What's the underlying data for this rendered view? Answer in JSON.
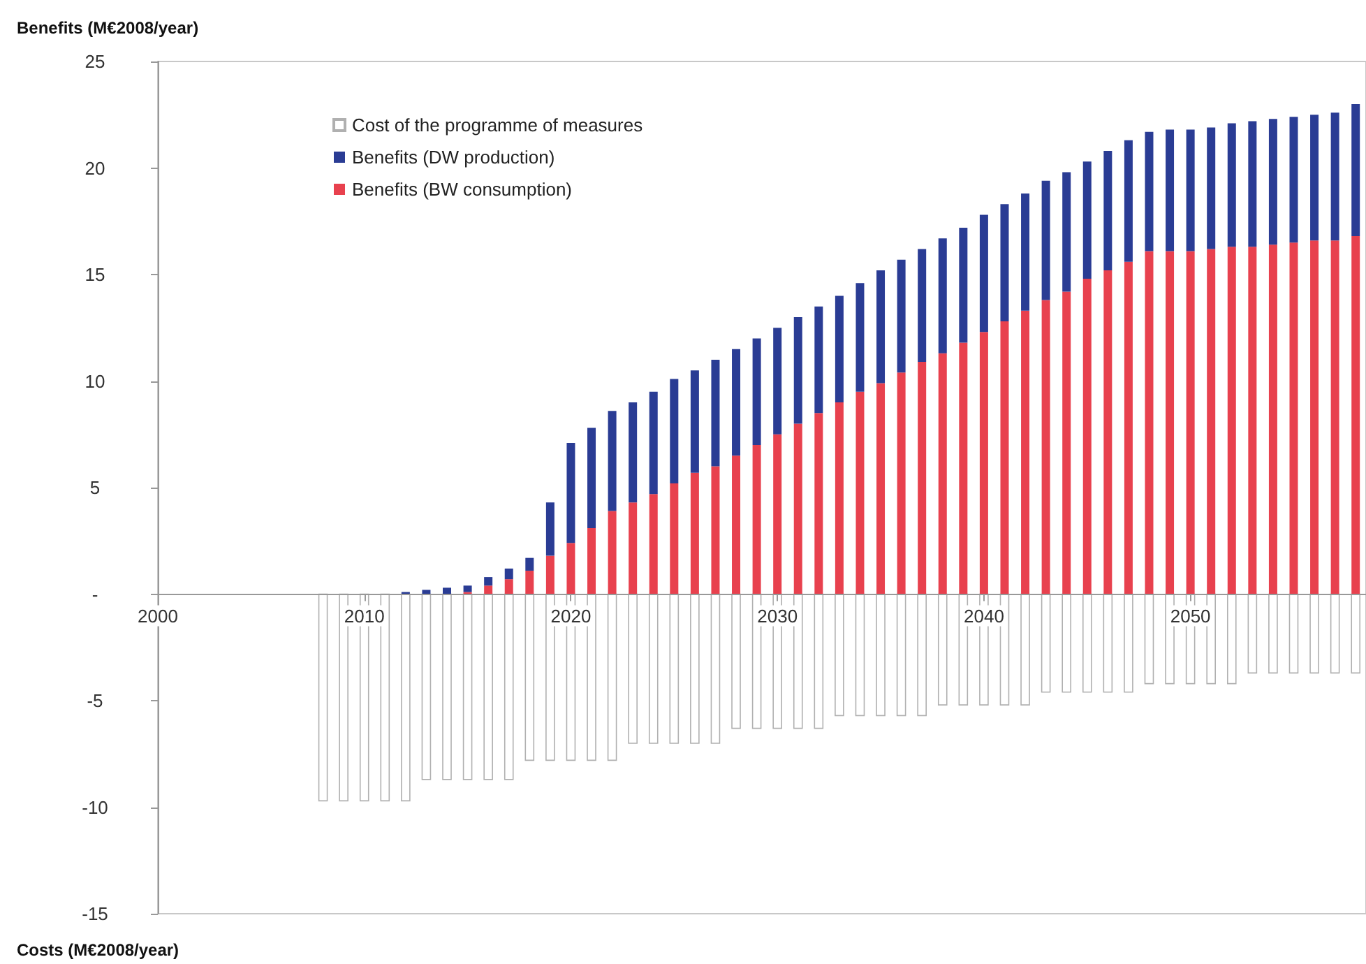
{
  "chart_data": {
    "type": "bar",
    "ylabel": "Benefits (M€2008/year)",
    "annotations": [
      "Costs (M€2008/year)"
    ],
    "x": [
      2008,
      2009,
      2010,
      2011,
      2012,
      2013,
      2014,
      2015,
      2016,
      2017,
      2018,
      2019,
      2020,
      2021,
      2022,
      2023,
      2024,
      2025,
      2026,
      2027,
      2028,
      2029,
      2030,
      2031,
      2032,
      2033,
      2034,
      2035,
      2036,
      2037,
      2038,
      2039,
      2040,
      2041,
      2042,
      2043,
      2044,
      2045,
      2046,
      2047,
      2048,
      2049,
      2050,
      2051,
      2052,
      2053,
      2054,
      2055,
      2056,
      2057,
      2058
    ],
    "series": [
      {
        "name": "Cost of the programme of measures",
        "color": "#ffffff",
        "values": [
          -9.7,
          -9.7,
          -9.7,
          -9.7,
          -9.7,
          -8.7,
          -8.7,
          -8.7,
          -8.7,
          -8.7,
          -7.8,
          -7.8,
          -7.8,
          -7.8,
          -7.8,
          -7.0,
          -7.0,
          -7.0,
          -7.0,
          -7.0,
          -6.3,
          -6.3,
          -6.3,
          -6.3,
          -6.3,
          -5.7,
          -5.7,
          -5.7,
          -5.7,
          -5.7,
          -5.2,
          -5.2,
          -5.2,
          -5.2,
          -5.2,
          -4.6,
          -4.6,
          -4.6,
          -4.6,
          -4.6,
          -4.2,
          -4.2,
          -4.2,
          -4.2,
          -4.2,
          -3.7,
          -3.7,
          -3.7,
          -3.7,
          -3.7,
          -3.7
        ]
      },
      {
        "name": "Benefits (BW consumption)",
        "color": "#e8414e",
        "values": [
          null,
          null,
          null,
          null,
          null,
          null,
          null,
          0.1,
          0.4,
          0.7,
          1.1,
          1.8,
          2.4,
          3.1,
          3.9,
          4.3,
          4.7,
          5.2,
          5.7,
          6.0,
          6.5,
          7.0,
          7.5,
          8.0,
          8.5,
          9.0,
          9.5,
          9.9,
          10.4,
          10.9,
          11.3,
          11.8,
          12.3,
          12.8,
          13.3,
          13.8,
          14.2,
          14.8,
          15.2,
          15.6,
          16.1,
          16.1,
          16.1,
          16.2,
          16.3,
          16.3,
          16.4,
          16.5,
          16.6,
          16.6,
          16.8
        ]
      },
      {
        "name": "Benefits (DW production)",
        "color": "#2a3c94",
        "values": [
          null,
          null,
          null,
          null,
          0.1,
          0.2,
          0.3,
          0.3,
          0.4,
          0.5,
          0.6,
          2.5,
          4.7,
          4.7,
          4.7,
          4.7,
          4.8,
          4.9,
          4.8,
          5.0,
          5.0,
          5.0,
          5.0,
          5.0,
          5.0,
          5.0,
          5.1,
          5.3,
          5.3,
          5.3,
          5.4,
          5.4,
          5.5,
          5.5,
          5.5,
          5.6,
          5.6,
          5.5,
          5.6,
          5.7,
          5.6,
          5.7,
          5.7,
          5.7,
          5.8,
          5.9,
          5.9,
          5.9,
          5.9,
          6.0,
          6.2
        ]
      }
    ],
    "stacked": true,
    "xlim": [
      2000,
      2058.5
    ],
    "xticks": [
      2000,
      2010,
      2020,
      2030,
      2040,
      2050
    ],
    "ylim": [
      -15,
      25
    ],
    "yticks": [
      -15,
      -10,
      -5,
      {
        "value": 0,
        "label": "-"
      },
      5,
      10,
      15,
      20,
      25
    ],
    "grid": false,
    "legend": "top left"
  }
}
